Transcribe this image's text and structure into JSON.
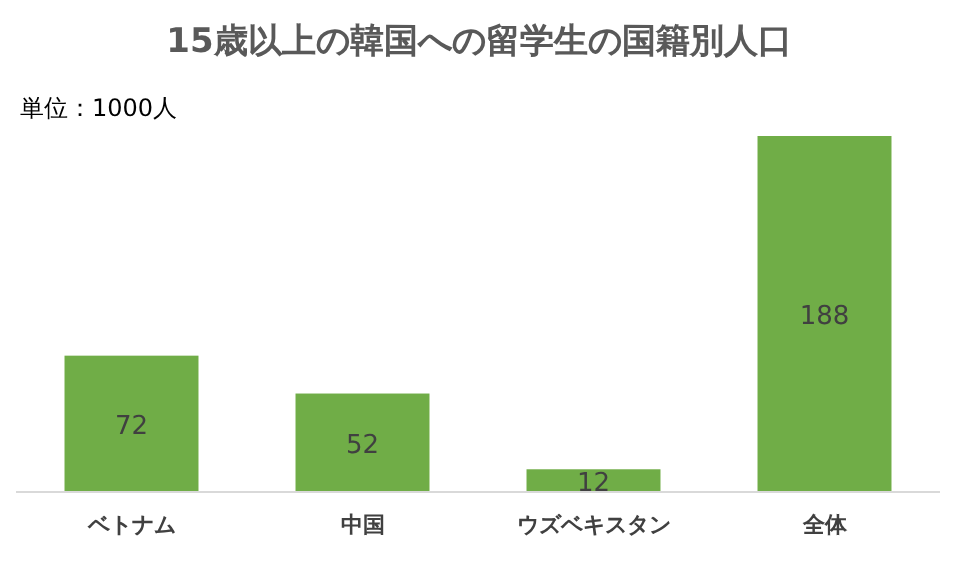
{
  "chart_data": {
    "type": "bar",
    "title": "15歳以上の韓国への留学生の国籍別人口",
    "annotations": [
      "単位：1000人"
    ],
    "categories": [
      "ベトナム",
      "中国",
      "ウズベキスタン",
      "全体"
    ],
    "values": [
      72,
      52,
      12,
      188
    ],
    "color": "#70ad47",
    "data_labels": true
  }
}
